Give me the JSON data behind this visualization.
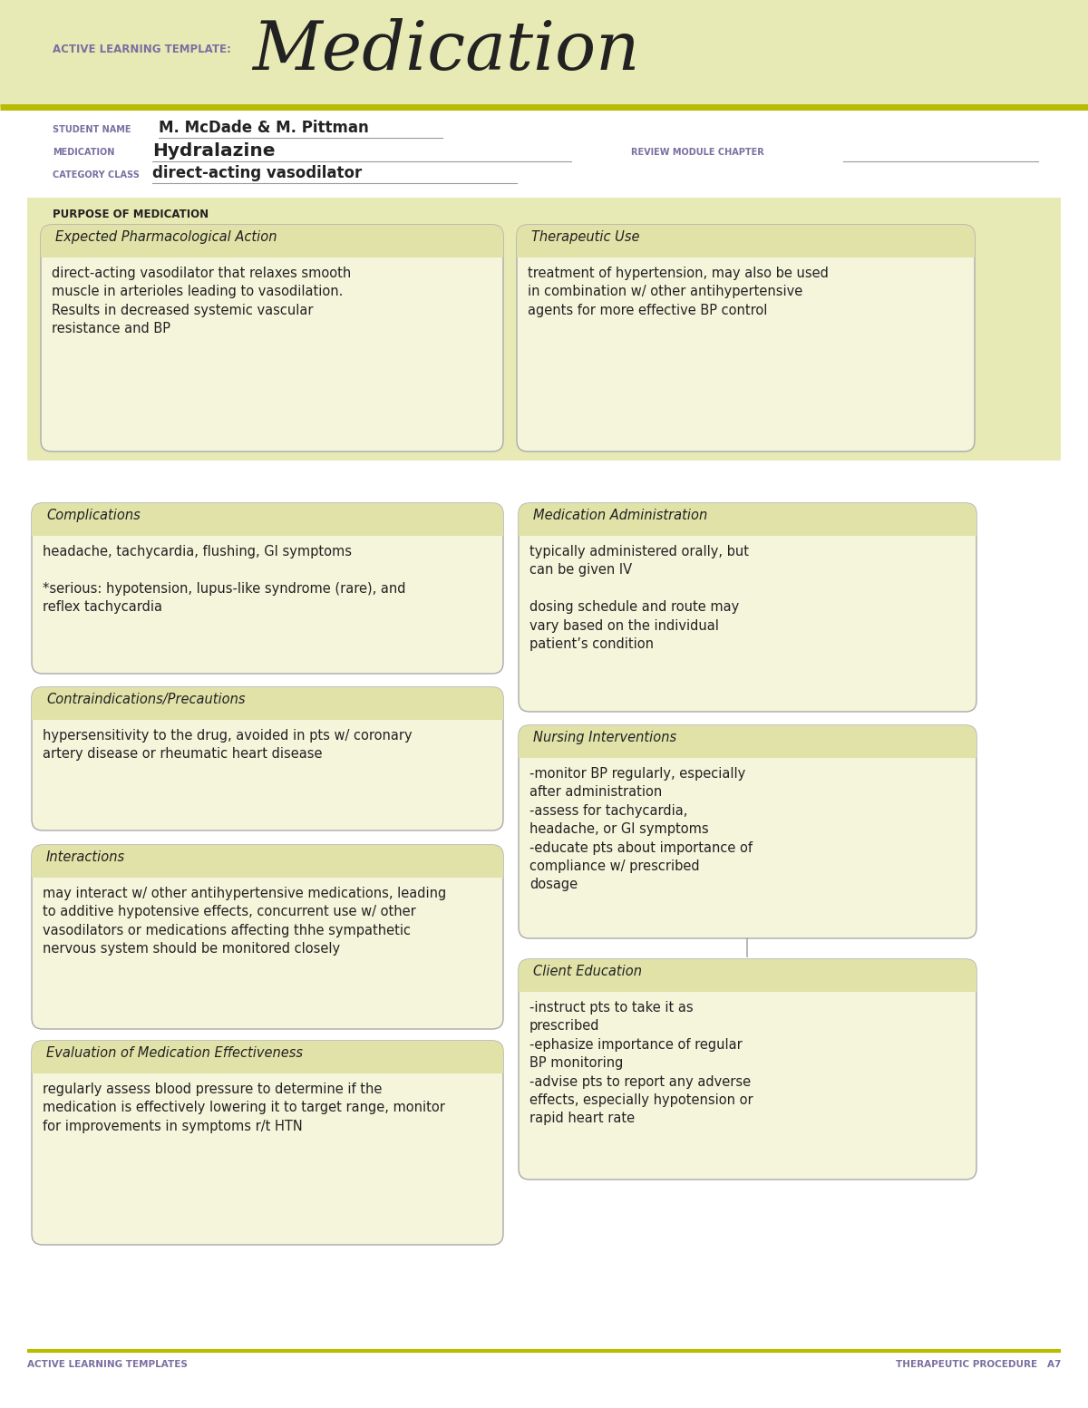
{
  "bg_color": "#ffffff",
  "header_bg": "#e8eab5",
  "box_fill": "#f5f5dc",
  "box_hdr_fill": "#e0e2a8",
  "box_border": "#aaaaaa",
  "purpose_bg": "#e8eab5",
  "purple_text": "#7b6fa0",
  "dark_text": "#222222",
  "olive_line": "#b8bb00",
  "title_label": "ACTIVE LEARNING TEMPLATE:",
  "title_main": "Medication",
  "student_label": "STUDENT NAME",
  "student_value": "M. McDade & M. Pittman",
  "medication_label": "MEDICATION",
  "medication_value": "Hydralazine",
  "category_label": "CATEGORY CLASS",
  "category_value": "direct-acting vasodilator",
  "review_label": "REVIEW MODULE CHAPTER",
  "purpose_label": "PURPOSE OF MEDICATION",
  "epa_title": "Expected Pharmacological Action",
  "epa_text": "direct-acting vasodilator that relaxes smooth\nmuscle in arterioles leading to vasodilation.\nResults in decreased systemic vascular\nresistance and BP",
  "tu_title": "Therapeutic Use",
  "tu_text": "treatment of hypertension, may also be used\nin combination w/ other antihypertensive\nagents for more effective BP control",
  "comp_title": "Complications",
  "comp_text": "headache, tachycardia, flushing, GI symptoms\n\n*serious: hypotension, lupus-like syndrome (rare), and\nreflex tachycardia",
  "medadmin_title": "Medication Administration",
  "medadmin_text": "typically administered orally, but\ncan be given IV\n\ndosing schedule and route may\nvary based on the individual\npatient’s condition",
  "contra_title": "Contraindications/Precautions",
  "contra_text": "hypersensitivity to the drug, avoided in pts w/ coronary\nartery disease or rheumatic heart disease",
  "nursing_title": "Nursing Interventions",
  "nursing_text": "-monitor BP regularly, especially\nafter administration\n-assess for tachycardia,\nheadache, or GI symptoms\n-educate pts about importance of\ncompliance w/ prescribed\ndosage",
  "interact_title": "Interactions",
  "interact_text": "may interact w/ other antihypertensive medications, leading\nto additive hypotensive effects, concurrent use w/ other\nvasodilators or medications affecting thhe sympathetic\nnervous system should be monitored closely",
  "client_title": "Client Education",
  "client_text": "-instruct pts to take it as\nprescribed\n-ephasize importance of regular\nBP monitoring\n-advise pts to report any adverse\neffects, especially hypotension or\nrapid heart rate",
  "eval_title": "Evaluation of Medication Effectiveness",
  "eval_text": "regularly assess blood pressure to determine if the\nmedication is effectively lowering it to target range, monitor\nfor improvements in symptoms r/t HTN",
  "footer_left": "ACTIVE LEARNING TEMPLATES",
  "footer_right": "THERAPEUTIC PROCEDURE   A7"
}
